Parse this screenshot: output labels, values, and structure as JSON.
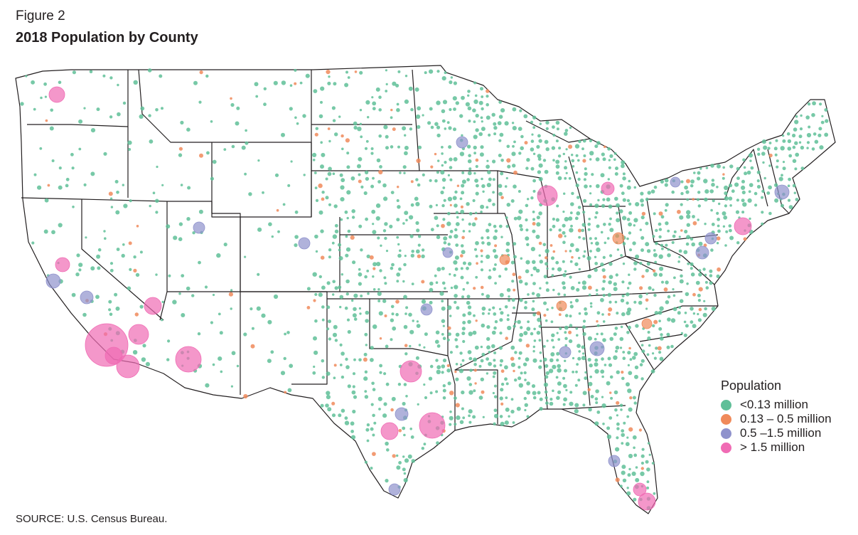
{
  "figure_label": "Figure 2",
  "title": "2018 Population by County",
  "source": "SOURCE: U.S. Census Bureau.",
  "legend": {
    "title": "Population",
    "items": [
      {
        "label": "<0.13 million",
        "color": "#5fbf98"
      },
      {
        "label": "0.13 – 0.5 million",
        "color": "#f08a5a"
      },
      {
        "label": "0.5 –1.5 million",
        "color": "#8f92cc"
      },
      {
        "label": "> 1.5 million",
        "color": "#f06bb4"
      }
    ]
  },
  "map": {
    "type": "proportional-symbol map",
    "region": "contiguous United States, counties",
    "land_color": "#ffffff",
    "border_color": "#231f20"
  }
}
